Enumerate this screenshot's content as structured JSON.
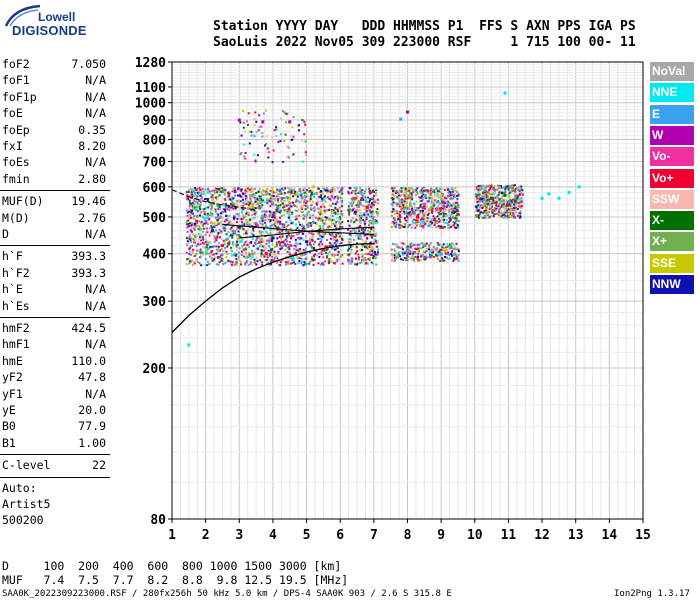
{
  "logo": {
    "brand": "Lowell",
    "product": "DIGISONDE"
  },
  "header": {
    "line1": "Station YYYY DAY   DDD HHMMSS P1  FFS S AXN PPS IGA PS",
    "line2": "SaoLuis 2022 Nov05 309 223000 RSF     1 715 100 00- 11"
  },
  "params_block1": [
    {
      "k": "foF2",
      "v": "7.050"
    },
    {
      "k": "foF1",
      "v": "N/A"
    },
    {
      "k": "foF1p",
      "v": "N/A"
    },
    {
      "k": "foE",
      "v": "N/A"
    },
    {
      "k": "foEp",
      "v": "0.35"
    },
    {
      "k": "fxI",
      "v": "8.20"
    },
    {
      "k": "foEs",
      "v": "N/A"
    },
    {
      "k": "fmin",
      "v": "2.80"
    }
  ],
  "params_block2": [
    {
      "k": "MUF(D)",
      "v": "19.46"
    },
    {
      "k": "M(D)",
      "v": "2.76"
    },
    {
      "k": "D",
      "v": "N/A"
    }
  ],
  "params_block3": [
    {
      "k": "h`F",
      "v": "393.3"
    },
    {
      "k": "h`F2",
      "v": "393.3"
    },
    {
      "k": "h`E",
      "v": "N/A"
    },
    {
      "k": "h`Es",
      "v": "N/A"
    }
  ],
  "params_block4": [
    {
      "k": "hmF2",
      "v": "424.5"
    },
    {
      "k": "hmF1",
      "v": "N/A"
    },
    {
      "k": "hmE",
      "v": "110.0"
    },
    {
      "k": "yF2",
      "v": "47.8"
    },
    {
      "k": "yF1",
      "v": "N/A"
    },
    {
      "k": "yE",
      "v": "20.0"
    },
    {
      "k": "B0",
      "v": "77.9"
    },
    {
      "k": "B1",
      "v": "1.00"
    }
  ],
  "c_level": {
    "k": "C-level",
    "v": "22"
  },
  "auto_block": [
    "Auto:",
    "Artist5",
    "500200"
  ],
  "legend": [
    {
      "label": "NoVal",
      "color": "#a8a8a8"
    },
    {
      "label": "NNE",
      "color": "#00e8f0"
    },
    {
      "label": "E",
      "color": "#3aa0f0"
    },
    {
      "label": "W",
      "color": "#b000b0"
    },
    {
      "label": "Vo-",
      "color": "#f030a0"
    },
    {
      "label": "Vo+",
      "color": "#f00030"
    },
    {
      "label": "SSW",
      "color": "#f8b8b0"
    },
    {
      "label": "X-",
      "color": "#007000"
    },
    {
      "label": "X+",
      "color": "#70b050"
    },
    {
      "label": "SSE",
      "color": "#c8c800"
    },
    {
      "label": "NNW",
      "color": "#1010b0"
    }
  ],
  "footer": {
    "d_row": "D     100  200  400  600  800 1000 1500 3000 [km]",
    "muf_row": "MUF   7.4  7.5  7.7  8.2  8.8  9.8 12.5 19.5 [MHz]",
    "info": "SAA0K_2022309223000.RSF / 280fx256h 50 kHz 5.0 km / DPS-4 SAA0K 903 / 2.6 S 315.8 E",
    "version": "Ion2Png 1.3.17"
  },
  "chart_data": {
    "type": "scatter",
    "xlabel": "",
    "ylabel": "",
    "xlim": [
      1,
      15
    ],
    "ylim": [
      80,
      1280
    ],
    "y_scale": "log",
    "x_ticks": [
      1,
      2,
      3,
      4,
      5,
      6,
      7,
      8,
      9,
      10,
      11,
      12,
      13,
      14,
      15
    ],
    "y_ticks": [
      80,
      200,
      300,
      400,
      500,
      600,
      700,
      800,
      900,
      1000,
      1100,
      1280
    ],
    "grid": true,
    "legend_position": "right",
    "series": [
      {
        "label": "NNE",
        "points": [
          [
            10.9,
            1060
          ],
          [
            12.0,
            560
          ],
          [
            12.2,
            575
          ],
          [
            12.5,
            560
          ],
          [
            12.8,
            580
          ],
          [
            13.1,
            600
          ],
          [
            1.5,
            230
          ]
        ]
      },
      {
        "label": "E",
        "points": [
          [
            8.0,
            410
          ],
          [
            8.5,
            420
          ],
          [
            9.0,
            400
          ],
          [
            9.3,
            415
          ],
          [
            7.8,
            905
          ]
        ]
      },
      {
        "label": "W",
        "points": [
          [
            3.0,
            900
          ],
          [
            3.7,
            890
          ],
          [
            4.5,
            890
          ],
          [
            8.0,
            945
          ]
        ]
      },
      {
        "label": "Vo-",
        "points": [
          [
            2.3,
            440
          ],
          [
            3.5,
            480
          ],
          [
            4.5,
            420
          ],
          [
            6.4,
            560
          ],
          [
            8.5,
            540
          ]
        ]
      },
      {
        "label": "Vo+",
        "points": [
          [
            2.5,
            420
          ],
          [
            3.8,
            400
          ],
          [
            5.5,
            410
          ],
          [
            6.8,
            530
          ],
          [
            8.3,
            500
          ],
          [
            10.5,
            560
          ],
          [
            11.0,
            540
          ]
        ]
      },
      {
        "label": "X-",
        "points": [
          [
            10.5,
            560
          ],
          [
            10.9,
            570
          ],
          [
            11.2,
            550
          ]
        ]
      },
      {
        "label": "X+",
        "points": [
          [
            4.8,
            590
          ],
          [
            10.3,
            540
          ],
          [
            11.1,
            600
          ]
        ]
      },
      {
        "label": "SSE",
        "points": [
          [
            3.4,
            540
          ],
          [
            4.5,
            560
          ],
          [
            5.2,
            600
          ]
        ]
      },
      {
        "label": "NNW",
        "points": [
          [
            2.2,
            460
          ],
          [
            3.0,
            470
          ],
          [
            4.0,
            440
          ],
          [
            5.0,
            430
          ]
        ]
      }
    ],
    "profile_curve": [
      [
        1.0,
        248
      ],
      [
        1.5,
        275
      ],
      [
        2.0,
        300
      ],
      [
        2.5,
        325
      ],
      [
        3.0,
        347
      ],
      [
        3.5,
        365
      ],
      [
        4.0,
        380
      ],
      [
        4.5,
        393
      ],
      [
        5.0,
        404
      ],
      [
        5.5,
        413
      ],
      [
        6.0,
        420
      ],
      [
        6.5,
        424
      ],
      [
        7.0,
        425
      ]
    ],
    "trace_curves": [
      [
        [
          1.0,
          590
        ],
        [
          1.5,
          565
        ],
        [
          2.0,
          548
        ],
        [
          2.5,
          538
        ],
        [
          3.0,
          530
        ],
        [
          3.5,
          522
        ]
      ],
      [
        [
          2.5,
          478
        ],
        [
          3.5,
          470
        ],
        [
          4.5,
          462
        ],
        [
          5.5,
          456
        ],
        [
          6.5,
          452
        ],
        [
          7.0,
          450
        ]
      ],
      [
        [
          3.0,
          440
        ],
        [
          4.0,
          448
        ],
        [
          5.0,
          458
        ],
        [
          6.0,
          465
        ],
        [
          7.0,
          470
        ]
      ]
    ]
  }
}
